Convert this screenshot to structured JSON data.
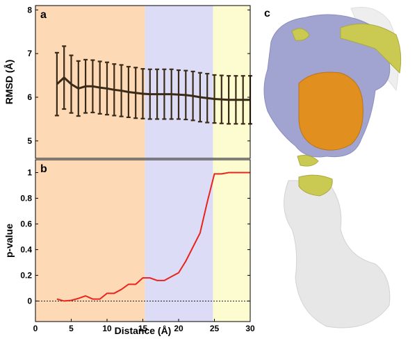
{
  "chart_data": [
    {
      "type": "errorline",
      "panel_label": "a",
      "ylabel": "RMSD (Å)",
      "xlim": [
        0,
        30
      ],
      "ylim": [
        4.6,
        8.1
      ],
      "yticks": [
        5,
        6,
        7,
        8
      ],
      "regions": [
        {
          "start": 0,
          "end": 15.3,
          "color": "#fdd9b5"
        },
        {
          "start": 15.3,
          "end": 24.8,
          "color": "#dcdcf7"
        },
        {
          "start": 24.8,
          "end": 30,
          "color": "#fdfbd0"
        }
      ],
      "color": "#3a2a18",
      "x": [
        3,
        4,
        5,
        6,
        7,
        8,
        9,
        10,
        11,
        12,
        13,
        14,
        15,
        16,
        17,
        18,
        19,
        20,
        21,
        22,
        23,
        24,
        25,
        26,
        27,
        28,
        29,
        30
      ],
      "values": [
        6.3,
        6.45,
        6.3,
        6.2,
        6.25,
        6.25,
        6.22,
        6.2,
        6.17,
        6.15,
        6.12,
        6.1,
        6.08,
        6.07,
        6.07,
        6.07,
        6.07,
        6.06,
        6.05,
        6.03,
        6.0,
        5.98,
        5.96,
        5.95,
        5.94,
        5.94,
        5.94,
        5.94
      ],
      "errors": [
        0.72,
        0.72,
        0.66,
        0.63,
        0.61,
        0.6,
        0.6,
        0.6,
        0.59,
        0.59,
        0.58,
        0.58,
        0.57,
        0.57,
        0.57,
        0.57,
        0.57,
        0.56,
        0.56,
        0.56,
        0.56,
        0.56,
        0.55,
        0.55,
        0.55,
        0.55,
        0.55,
        0.55
      ]
    },
    {
      "type": "line",
      "panel_label": "b",
      "ylabel": "p-value",
      "xlabel": "Distance (Å)",
      "xlim": [
        0,
        30
      ],
      "xticks": [
        0,
        5,
        10,
        15,
        20,
        25,
        30
      ],
      "ylim": [
        -0.16,
        1.1
      ],
      "yticks": [
        0,
        0.2,
        0.4,
        0.6,
        0.8,
        1
      ],
      "regions": [
        {
          "start": 0,
          "end": 15.3,
          "color": "#fdd9b5"
        },
        {
          "start": 15.3,
          "end": 24.8,
          "color": "#dcdcf7"
        },
        {
          "start": 24.8,
          "end": 30,
          "color": "#fdfbd0"
        }
      ],
      "reference_line": 0,
      "color": "#e8241c",
      "x": [
        3,
        4,
        5,
        6,
        7,
        8,
        9,
        10,
        11,
        12,
        13,
        14,
        15,
        16,
        17,
        18,
        19,
        20,
        21,
        22,
        23,
        24,
        25,
        26,
        27,
        28,
        29,
        30
      ],
      "values": [
        0.015,
        0.0,
        0.005,
        0.02,
        0.04,
        0.015,
        0.015,
        0.06,
        0.06,
        0.09,
        0.13,
        0.13,
        0.18,
        0.18,
        0.16,
        0.16,
        0.19,
        0.22,
        0.31,
        0.42,
        0.53,
        0.77,
        0.99,
        0.99,
        1.0,
        1.0,
        1.0,
        1.0
      ]
    }
  ],
  "panel_c": {
    "label": "c"
  }
}
